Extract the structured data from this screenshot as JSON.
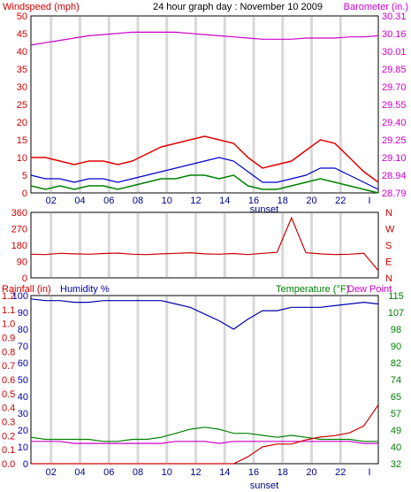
{
  "title": "24 hour graph day : November 10 2009",
  "colors": {
    "wind_gust": "#e00000",
    "wind_avg": "#0000cc",
    "wind_min": "#008000",
    "barometer": "#cc00cc",
    "direction": "#cc0000",
    "humidity": "#0000aa",
    "temperature": "#008000",
    "dewpoint": "#cc00cc",
    "rainfall": "#cc0000",
    "sunset_marker": "#000088"
  },
  "chart_data": [
    {
      "type": "line",
      "id": "wind_barometer",
      "y_label_left": "Windspeed (mph)",
      "y_label_right": "Barometer (in.)",
      "ylim_left": [
        0,
        50
      ],
      "yticks_left": [
        "0",
        "5",
        "10",
        "15",
        "20",
        "25",
        "30",
        "35",
        "40",
        "45",
        "50"
      ],
      "ylim_right": [
        28.79,
        30.31
      ],
      "yticks_right": [
        "28.79",
        "28.94",
        "29.10",
        "29.25",
        "29.40",
        "29.55",
        "29.70",
        "29.85",
        "30.01",
        "30.16",
        "30.31"
      ],
      "x_ticks": [
        "02",
        "04",
        "06",
        "08",
        "10",
        "12",
        "14",
        "16",
        "18",
        "20",
        "22",
        "I"
      ],
      "marker_label": "sunset",
      "x": [
        0,
        1,
        2,
        3,
        4,
        5,
        6,
        7,
        8,
        9,
        10,
        11,
        12,
        13,
        14,
        15,
        16,
        17,
        18,
        19,
        20,
        21,
        22,
        23,
        24
      ],
      "series": [
        {
          "key": "gust",
          "axis": "left",
          "values": [
            10,
            10,
            9,
            8,
            9,
            9,
            8,
            9,
            11,
            13,
            14,
            15,
            16,
            15,
            14,
            10,
            7,
            8,
            9,
            12,
            15,
            14,
            10,
            6,
            3
          ]
        },
        {
          "key": "avg",
          "axis": "left",
          "values": [
            5,
            4,
            4,
            3,
            4,
            4,
            3,
            4,
            5,
            6,
            7,
            8,
            9,
            10,
            9,
            6,
            3,
            3,
            4,
            5,
            7,
            7,
            5,
            3,
            1
          ]
        },
        {
          "key": "low",
          "axis": "left",
          "values": [
            2,
            1,
            2,
            1,
            2,
            2,
            1,
            2,
            3,
            4,
            4,
            5,
            5,
            4,
            5,
            2,
            1,
            1,
            2,
            3,
            4,
            3,
            2,
            1,
            0
          ]
        },
        {
          "key": "baro",
          "axis": "right",
          "values": [
            30.06,
            30.08,
            30.1,
            30.12,
            30.14,
            30.15,
            30.16,
            30.17,
            30.17,
            30.17,
            30.17,
            30.16,
            30.15,
            30.14,
            30.13,
            30.12,
            30.11,
            30.11,
            30.11,
            30.12,
            30.12,
            30.12,
            30.13,
            30.13,
            30.14
          ]
        }
      ]
    },
    {
      "type": "line",
      "id": "wind_direction",
      "ylim": [
        0,
        360
      ],
      "yticks": [
        "0",
        "90",
        "180",
        "270",
        "360"
      ],
      "compass": [
        "N",
        "W",
        "S",
        "E",
        "N"
      ],
      "x": [
        0,
        1,
        2,
        3,
        4,
        5,
        6,
        7,
        8,
        9,
        10,
        11,
        12,
        13,
        14,
        15,
        16,
        17,
        18,
        19,
        20,
        21,
        22,
        23,
        24
      ],
      "series": [
        {
          "key": "dir",
          "values": [
            130,
            128,
            135,
            132,
            130,
            134,
            136,
            130,
            128,
            132,
            135,
            138,
            132,
            130,
            134,
            128,
            135,
            140,
            330,
            138,
            132,
            128,
            130,
            135,
            40
          ]
        }
      ]
    },
    {
      "type": "line",
      "id": "humidity_temp_rain",
      "y_label_left": "Rainfall (in)",
      "y_label_left2": "Humidity %",
      "y_label_right": "Temperature (°F)",
      "y_label_right2": "Dew Point",
      "yticks_rain": [
        "0.0",
        "0.1",
        "0.2",
        "0.3",
        "0.4",
        "0.5",
        "0.6",
        "0.7",
        "0.8",
        "0.9",
        "1.0",
        "1.1",
        "1.2"
      ],
      "rain_lim": [
        0,
        1.2
      ],
      "yticks_humidity": [
        "0",
        "10",
        "20",
        "30",
        "40",
        "50",
        "60",
        "70",
        "80",
        "90",
        "100"
      ],
      "humidity_lim": [
        0,
        100
      ],
      "yticks_temp": [
        "32",
        "40",
        "49",
        "57",
        "65",
        "74",
        "82",
        "90",
        "98",
        "107",
        "115"
      ],
      "temp_lim": [
        32,
        115
      ],
      "x": [
        0,
        1,
        2,
        3,
        4,
        5,
        6,
        7,
        8,
        9,
        10,
        11,
        12,
        13,
        14,
        15,
        16,
        17,
        18,
        19,
        20,
        21,
        22,
        23,
        24
      ],
      "series": [
        {
          "key": "humidity",
          "values": [
            98,
            97,
            97,
            96,
            96,
            97,
            97,
            97,
            97,
            97,
            95,
            93,
            89,
            85,
            80,
            86,
            91,
            91,
            93,
            93,
            93,
            94,
            95,
            96,
            95
          ]
        },
        {
          "key": "temperature",
          "values": [
            45,
            44,
            44,
            44,
            44,
            43,
            43,
            44,
            44,
            45,
            47,
            49,
            50,
            49,
            47,
            47,
            46,
            45,
            46,
            45,
            44,
            44,
            44,
            43,
            43
          ]
        },
        {
          "key": "dewpoint",
          "values": [
            43,
            43,
            43,
            42,
            42,
            42,
            42,
            42,
            42,
            42,
            43,
            43,
            43,
            42,
            43,
            43,
            43,
            43,
            43,
            43,
            43,
            43,
            43,
            42,
            42
          ]
        },
        {
          "key": "rain",
          "values": [
            0,
            0,
            0,
            0,
            0,
            0,
            0,
            0,
            0,
            0,
            0,
            0,
            0,
            0,
            0,
            0.05,
            0.12,
            0.14,
            0.14,
            0.17,
            0.19,
            0.2,
            0.22,
            0.27,
            0.42
          ]
        }
      ]
    }
  ]
}
